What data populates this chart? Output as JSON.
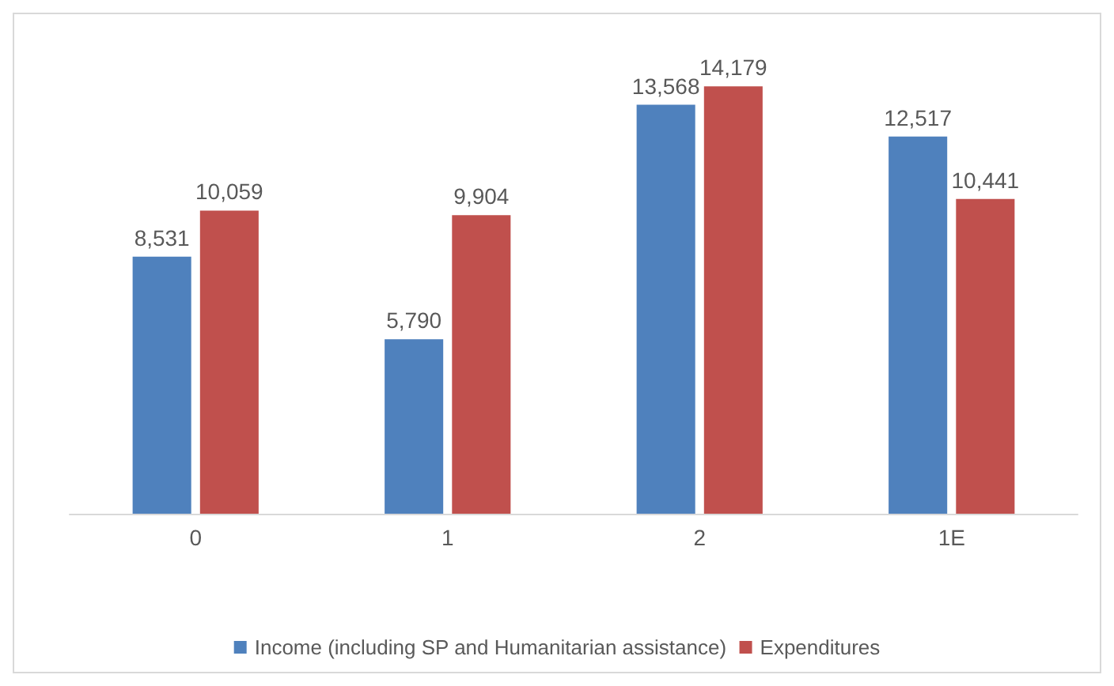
{
  "chart_data": {
    "type": "bar",
    "categories": [
      "0",
      "1",
      "2",
      "1E"
    ],
    "series": [
      {
        "name": "Income (including SP and Humanitarian assistance)",
        "color": "#4f81bd",
        "values": [
          8531,
          5790,
          13568,
          12517
        ],
        "value_labels": [
          "8,531",
          "5,790",
          "13,568",
          "12,517"
        ]
      },
      {
        "name": "Expenditures",
        "color": "#c0504d",
        "values": [
          10059,
          9904,
          14179,
          10441
        ],
        "value_labels": [
          "10,059",
          "9,904",
          "14,179",
          "10,441"
        ]
      }
    ],
    "legend": "bottom"
  }
}
